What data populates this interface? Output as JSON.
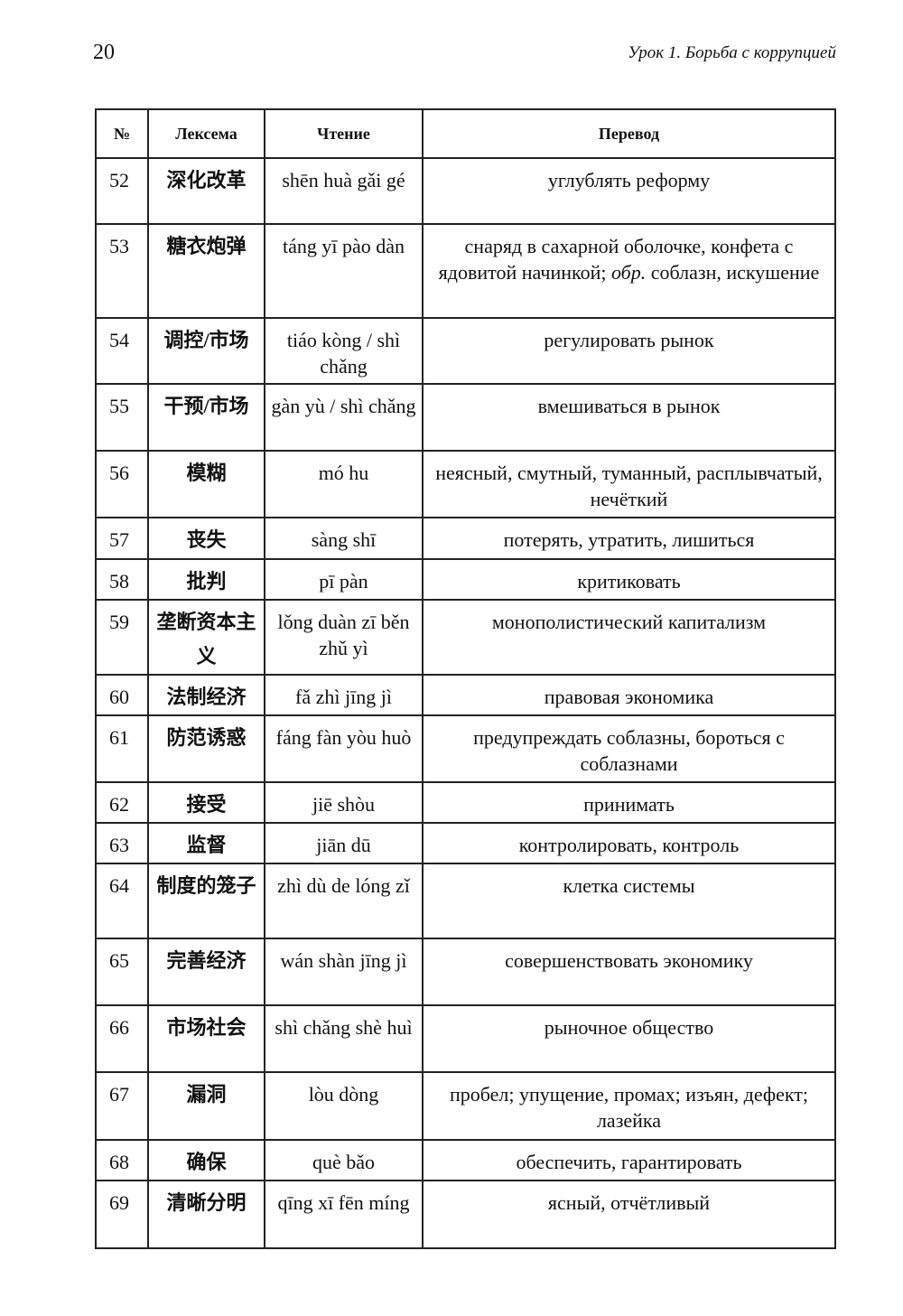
{
  "page_number": "20",
  "running_header": "Урок 1. Борьба с коррупцией",
  "table": {
    "headers": [
      "№",
      "Лексема",
      "Чтение",
      "Перевод"
    ],
    "rows": [
      {
        "num": "52",
        "lexeme": "深化改革",
        "reading": "shēn huà gǎi gé",
        "translation": "углублять реформу"
      },
      {
        "num": "53",
        "lexeme": "糖衣炮弹",
        "reading": "táng yī pào dàn",
        "translation": "снаряд в сахарной оболочке, конфета с ядовитой начинкой; ",
        "translation_italic": "обр.",
        "translation_rest": " соблазн, иску­шение"
      },
      {
        "num": "54",
        "lexeme": "调控/市场",
        "reading": "tiáo kòng / shì chǎng",
        "translation": "регулировать рынок"
      },
      {
        "num": "55",
        "lexeme": "干预/市场",
        "reading": "gàn yù / shì chǎng",
        "translation": "вмешиваться в рынок"
      },
      {
        "num": "56",
        "lexeme": "模糊",
        "reading": "mó hu",
        "translation": "неясный, смутный, туманный, расплыв­чатый, нечёткий"
      },
      {
        "num": "57",
        "lexeme": "丧失",
        "reading": "sàng shī",
        "translation": "потерять, утратить, лишиться"
      },
      {
        "num": "58",
        "lexeme": "批判",
        "reading": "pī pàn",
        "translation": "критиковать"
      },
      {
        "num": "59",
        "lexeme": "垄断资本主义",
        "reading": "lǒng duàn zī běn zhǔ yì",
        "translation": "монополистический капитализм"
      },
      {
        "num": "60",
        "lexeme": "法制经济",
        "reading": "fǎ zhì jīng jì",
        "translation": "правовая экономика"
      },
      {
        "num": "61",
        "lexeme": "防范诱惑",
        "reading": "fáng fàn yòu huò",
        "translation": "предупреждать соблазны, бороться с соблазнами"
      },
      {
        "num": "62",
        "lexeme": "接受",
        "reading": "jiē shòu",
        "translation": "принимать"
      },
      {
        "num": "63",
        "lexeme": "监督",
        "reading": "jiān dū",
        "translation": "контролировать, контроль"
      },
      {
        "num": "64",
        "lexeme": "制度的笼子",
        "reading": "zhì dù de lóng zǐ",
        "translation": "клетка системы"
      },
      {
        "num": "65",
        "lexeme": "完善经济",
        "reading": "wán shàn jīng jì",
        "translation": "совершенствовать экономику"
      },
      {
        "num": "66",
        "lexeme": "市场社会",
        "reading": "shì chǎng shè huì",
        "translation": "рыночное общество"
      },
      {
        "num": "67",
        "lexeme": "漏洞",
        "reading": "lòu dòng",
        "translation": "пробел; упущение, промах; изъян, дефект; лазейка"
      },
      {
        "num": "68",
        "lexeme": "确保",
        "reading": "què bǎo",
        "translation": "обеспечить, гарантировать"
      },
      {
        "num": "69",
        "lexeme": "清晰分明",
        "reading": "qīng xī fēn míng",
        "translation": "ясный, отчётливый"
      }
    ]
  }
}
